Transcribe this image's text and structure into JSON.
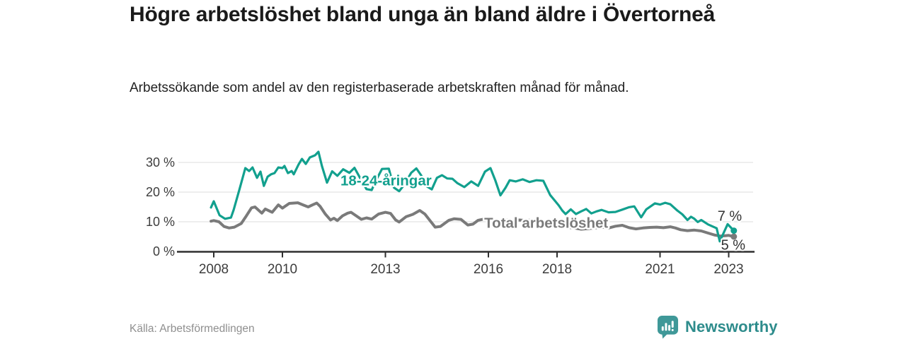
{
  "header": {
    "title": "Högre arbetslöshet bland unga än bland äldre i Övertorneå",
    "subtitle": "Arbetssökande som andel av den registerbaserade arbetskraften månad för månad."
  },
  "footer": {
    "source": "Källa: Arbetsförmedlingen",
    "brand": "Newsworthy"
  },
  "colors": {
    "youth_line": "#12A08E",
    "total_line": "#7a7a7a",
    "axis": "#2f2f2f",
    "grid": "#dedede",
    "axis_text": "#3d3d3d",
    "end_label_text": "#333333",
    "brand_icon": "#3F9898",
    "brand_text": "#2E8C8C",
    "title_text": "#1a1a1a",
    "source_text": "#8f8f8f"
  },
  "chart_data": {
    "type": "line",
    "unit": "%",
    "grid": true,
    "xlim": [
      2007.85,
      2023.75
    ],
    "ylim": [
      0,
      35
    ],
    "x_ticks": [
      {
        "x": 2008,
        "label": "2008"
      },
      {
        "x": 2010,
        "label": "2010"
      },
      {
        "x": 2013,
        "label": "2013"
      },
      {
        "x": 2016,
        "label": "2016"
      },
      {
        "x": 2018,
        "label": "2018"
      },
      {
        "x": 2021,
        "label": "2021"
      },
      {
        "x": 2023,
        "label": "2023"
      }
    ],
    "y_ticks": [
      {
        "v": 0,
        "label": "0 %"
      },
      {
        "v": 10,
        "label": "10 %"
      },
      {
        "v": 20,
        "label": "20 %"
      },
      {
        "v": 30,
        "label": "30 %"
      }
    ],
    "series": [
      {
        "id": "total",
        "name": "Total arbetslöshet",
        "color": "#7a7a7a",
        "end_label": "5 %",
        "points": [
          [
            2007.92,
            10.2
          ],
          [
            2008.0,
            10.4
          ],
          [
            2008.15,
            10.0
          ],
          [
            2008.3,
            8.4
          ],
          [
            2008.45,
            7.9
          ],
          [
            2008.6,
            8.2
          ],
          [
            2008.8,
            9.4
          ],
          [
            2008.95,
            12.0
          ],
          [
            2009.1,
            14.7
          ],
          [
            2009.2,
            15.0
          ],
          [
            2009.4,
            12.9
          ],
          [
            2009.5,
            14.3
          ],
          [
            2009.7,
            13.2
          ],
          [
            2009.88,
            15.7
          ],
          [
            2010.0,
            14.6
          ],
          [
            2010.2,
            16.2
          ],
          [
            2010.45,
            16.4
          ],
          [
            2010.6,
            15.7
          ],
          [
            2010.75,
            15.0
          ],
          [
            2010.9,
            15.8
          ],
          [
            2011.0,
            16.3
          ],
          [
            2011.1,
            15.2
          ],
          [
            2011.25,
            12.6
          ],
          [
            2011.4,
            10.6
          ],
          [
            2011.5,
            11.2
          ],
          [
            2011.6,
            10.4
          ],
          [
            2011.75,
            12.0
          ],
          [
            2011.9,
            12.9
          ],
          [
            2012.0,
            13.2
          ],
          [
            2012.15,
            12.0
          ],
          [
            2012.3,
            10.8
          ],
          [
            2012.45,
            11.3
          ],
          [
            2012.6,
            10.9
          ],
          [
            2012.8,
            12.6
          ],
          [
            2013.0,
            13.2
          ],
          [
            2013.15,
            12.8
          ],
          [
            2013.3,
            10.6
          ],
          [
            2013.4,
            9.9
          ],
          [
            2013.6,
            11.7
          ],
          [
            2013.8,
            12.5
          ],
          [
            2014.0,
            13.8
          ],
          [
            2014.15,
            12.6
          ],
          [
            2014.3,
            10.4
          ],
          [
            2014.45,
            8.2
          ],
          [
            2014.6,
            8.4
          ],
          [
            2014.85,
            10.5
          ],
          [
            2015.0,
            11.0
          ],
          [
            2015.2,
            10.8
          ],
          [
            2015.4,
            8.9
          ],
          [
            2015.55,
            9.2
          ],
          [
            2015.7,
            10.5
          ],
          [
            2015.9,
            11.0
          ],
          [
            2016.1,
            10.4
          ],
          [
            2016.3,
            10.0
          ],
          [
            2016.5,
            10.6
          ],
          [
            2016.7,
            10.3
          ],
          [
            2016.9,
            10.6
          ],
          [
            2017.1,
            10.4
          ],
          [
            2017.3,
            10.7
          ],
          [
            2017.5,
            10.3
          ],
          [
            2017.7,
            9.7
          ],
          [
            2017.9,
            9.2
          ],
          [
            2018.1,
            8.6
          ],
          [
            2018.3,
            8.1
          ],
          [
            2018.5,
            7.9
          ],
          [
            2018.7,
            7.5
          ],
          [
            2018.9,
            7.7
          ],
          [
            2019.1,
            7.9
          ],
          [
            2019.3,
            8.2
          ],
          [
            2019.5,
            7.9
          ],
          [
            2019.7,
            8.5
          ],
          [
            2019.9,
            8.8
          ],
          [
            2020.1,
            8.0
          ],
          [
            2020.3,
            7.6
          ],
          [
            2020.5,
            7.9
          ],
          [
            2020.7,
            8.1
          ],
          [
            2020.9,
            8.2
          ],
          [
            2021.1,
            8.0
          ],
          [
            2021.3,
            8.3
          ],
          [
            2021.45,
            7.9
          ],
          [
            2021.6,
            7.3
          ],
          [
            2021.8,
            7.0
          ],
          [
            2022.0,
            7.2
          ],
          [
            2022.2,
            6.9
          ],
          [
            2022.4,
            6.2
          ],
          [
            2022.6,
            5.5
          ],
          [
            2022.75,
            5.2
          ],
          [
            2022.9,
            5.3
          ],
          [
            2023.0,
            5.4
          ],
          [
            2023.15,
            5.0
          ]
        ],
        "label_pos": {
          "x": 2015.88,
          "y": 8.0,
          "anchor": "start"
        },
        "end_label_pos": {
          "x": 2023.13,
          "y": 0.6
        }
      },
      {
        "id": "youth",
        "name": "18-24-åringar",
        "color": "#12A08E",
        "end_label": "7 %",
        "points": [
          [
            2007.92,
            14.8
          ],
          [
            2008.0,
            16.9
          ],
          [
            2008.17,
            12.2
          ],
          [
            2008.33,
            11.0
          ],
          [
            2008.5,
            11.4
          ],
          [
            2008.58,
            14.0
          ],
          [
            2008.75,
            21.0
          ],
          [
            2008.92,
            28.1
          ],
          [
            2009.03,
            27.1
          ],
          [
            2009.13,
            28.3
          ],
          [
            2009.26,
            24.8
          ],
          [
            2009.36,
            26.9
          ],
          [
            2009.46,
            22.1
          ],
          [
            2009.57,
            25.2
          ],
          [
            2009.67,
            26.0
          ],
          [
            2009.77,
            26.4
          ],
          [
            2009.88,
            28.3
          ],
          [
            2010.0,
            28.1
          ],
          [
            2010.06,
            28.8
          ],
          [
            2010.16,
            26.4
          ],
          [
            2010.27,
            27.1
          ],
          [
            2010.33,
            26.0
          ],
          [
            2010.47,
            29.3
          ],
          [
            2010.57,
            31.2
          ],
          [
            2010.68,
            29.5
          ],
          [
            2010.8,
            31.7
          ],
          [
            2010.95,
            32.4
          ],
          [
            2011.05,
            33.6
          ],
          [
            2011.15,
            28.8
          ],
          [
            2011.3,
            23.2
          ],
          [
            2011.45,
            27.0
          ],
          [
            2011.6,
            25.5
          ],
          [
            2011.77,
            27.7
          ],
          [
            2011.95,
            26.5
          ],
          [
            2012.1,
            28.2
          ],
          [
            2012.3,
            24.0
          ],
          [
            2012.45,
            21.0
          ],
          [
            2012.6,
            20.7
          ],
          [
            2012.75,
            24.5
          ],
          [
            2012.9,
            27.8
          ],
          [
            2013.1,
            27.9
          ],
          [
            2013.25,
            21.5
          ],
          [
            2013.4,
            20.3
          ],
          [
            2013.55,
            22.5
          ],
          [
            2013.75,
            26.5
          ],
          [
            2013.9,
            28.0
          ],
          [
            2014.05,
            25.5
          ],
          [
            2014.2,
            22.0
          ],
          [
            2014.35,
            20.9
          ],
          [
            2014.5,
            24.8
          ],
          [
            2014.65,
            25.7
          ],
          [
            2014.8,
            24.6
          ],
          [
            2014.95,
            24.5
          ],
          [
            2015.1,
            23.0
          ],
          [
            2015.3,
            21.7
          ],
          [
            2015.5,
            23.6
          ],
          [
            2015.7,
            22.1
          ],
          [
            2015.9,
            26.9
          ],
          [
            2016.06,
            28.1
          ],
          [
            2016.2,
            24.0
          ],
          [
            2016.35,
            18.9
          ],
          [
            2016.5,
            21.5
          ],
          [
            2016.62,
            24.0
          ],
          [
            2016.8,
            23.6
          ],
          [
            2017.0,
            24.3
          ],
          [
            2017.2,
            23.4
          ],
          [
            2017.4,
            24.0
          ],
          [
            2017.6,
            23.8
          ],
          [
            2017.8,
            19.0
          ],
          [
            2017.95,
            16.9
          ],
          [
            2018.05,
            15.5
          ],
          [
            2018.15,
            13.8
          ],
          [
            2018.25,
            12.6
          ],
          [
            2018.4,
            14.2
          ],
          [
            2018.55,
            12.6
          ],
          [
            2018.7,
            13.5
          ],
          [
            2018.85,
            14.3
          ],
          [
            2019.0,
            12.8
          ],
          [
            2019.15,
            13.5
          ],
          [
            2019.3,
            14.0
          ],
          [
            2019.5,
            13.2
          ],
          [
            2019.7,
            13.3
          ],
          [
            2019.9,
            14.1
          ],
          [
            2020.1,
            14.9
          ],
          [
            2020.25,
            15.2
          ],
          [
            2020.45,
            11.5
          ],
          [
            2020.6,
            14.2
          ],
          [
            2020.85,
            16.2
          ],
          [
            2021.0,
            15.8
          ],
          [
            2021.15,
            16.4
          ],
          [
            2021.3,
            15.9
          ],
          [
            2021.5,
            13.8
          ],
          [
            2021.65,
            12.5
          ],
          [
            2021.8,
            10.6
          ],
          [
            2021.9,
            11.7
          ],
          [
            2022.0,
            11.0
          ],
          [
            2022.1,
            9.9
          ],
          [
            2022.2,
            10.6
          ],
          [
            2022.4,
            9.1
          ],
          [
            2022.55,
            8.3
          ],
          [
            2022.65,
            7.8
          ],
          [
            2022.74,
            3.4
          ],
          [
            2022.97,
            9.2
          ],
          [
            2023.15,
            7.0
          ]
        ],
        "label_pos": {
          "x": 2011.69,
          "y": 22.3,
          "anchor": "start"
        },
        "end_label_pos": {
          "x": 2023.03,
          "y": 10.4
        }
      }
    ]
  }
}
